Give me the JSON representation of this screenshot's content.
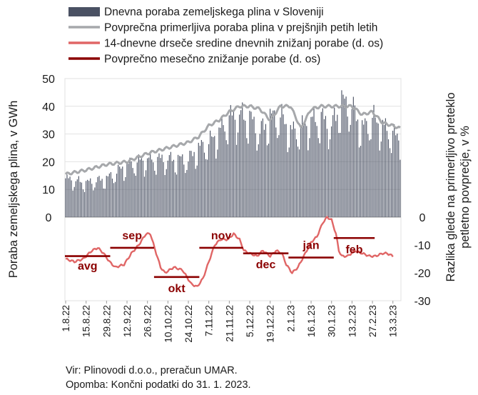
{
  "chart_data": {
    "type": "bar+line",
    "legend": [
      {
        "label": "Dnevna poraba zemeljskega plina v Sloveniji",
        "color": "#4a5163",
        "kind": "bar"
      },
      {
        "label": "Povprečna primerljiva poraba plina v prejšnjih petih letih",
        "color": "#a6a8ab",
        "kind": "line"
      },
      {
        "label": "14-dnevne drseče sredine dnevnih znižanj porabe (d. os)",
        "color": "#e06666",
        "kind": "line"
      },
      {
        "label": "Povprečno mesečno znižanje porabe (d. os)",
        "color": "#8b0000",
        "kind": "line"
      }
    ],
    "ylabel_left": "Poraba zemeljskega plina, v GWh",
    "ylabel_right": "Razlika glede na primerljivo preteklo petletno povprečje, v %",
    "y_left": {
      "ticks": [
        "50",
        "40",
        "30",
        "20",
        "10",
        "0"
      ],
      "range": [
        0,
        50
      ]
    },
    "y_right": {
      "ticks": [
        "0",
        "-10",
        "-20",
        "-30"
      ],
      "range": [
        -30,
        0
      ]
    },
    "x_ticks": [
      "1.8.22",
      "15.8.22",
      "29.8.22",
      "12.9.22",
      "26.9.22",
      "10.10.22",
      "24.10.22",
      "7.11.22",
      "21.11.22",
      "5.12.22",
      "19.12.22",
      "2.1.23",
      "16.1.23",
      "30.1.23",
      "13.2.23",
      "27.2.23",
      "13.3.23"
    ],
    "x_start": "2022-08-01",
    "n_days": 230,
    "daily_consumption_anchors": [
      [
        0,
        14
      ],
      [
        14,
        12.5
      ],
      [
        28,
        14
      ],
      [
        42,
        19
      ],
      [
        56,
        21
      ],
      [
        70,
        21
      ],
      [
        84,
        21
      ],
      [
        91,
        25
      ],
      [
        98,
        27
      ],
      [
        105,
        31
      ],
      [
        112,
        36
      ],
      [
        119,
        37
      ],
      [
        126,
        36
      ],
      [
        133,
        31
      ],
      [
        140,
        36
      ],
      [
        147,
        37
      ],
      [
        154,
        31
      ],
      [
        161,
        32
      ],
      [
        168,
        35
      ],
      [
        175,
        36
      ],
      [
        182,
        33
      ],
      [
        189,
        42
      ],
      [
        196,
        40
      ],
      [
        203,
        32
      ],
      [
        210,
        36
      ],
      [
        217,
        33
      ],
      [
        224,
        30
      ],
      [
        229,
        29
      ]
    ],
    "five_year_avg_anchors": [
      [
        0,
        15.5
      ],
      [
        14,
        17
      ],
      [
        28,
        19
      ],
      [
        42,
        20
      ],
      [
        56,
        23
      ],
      [
        70,
        25
      ],
      [
        84,
        27
      ],
      [
        91,
        29
      ],
      [
        98,
        33
      ],
      [
        105,
        35
      ],
      [
        112,
        38
      ],
      [
        119,
        40
      ],
      [
        126,
        40
      ],
      [
        133,
        39
      ],
      [
        140,
        35
      ],
      [
        147,
        40
      ],
      [
        154,
        40
      ],
      [
        161,
        32
      ],
      [
        168,
        39
      ],
      [
        175,
        40
      ],
      [
        182,
        40
      ],
      [
        189,
        40
      ],
      [
        196,
        40
      ],
      [
        203,
        37
      ],
      [
        210,
        38
      ],
      [
        217,
        34
      ],
      [
        224,
        33
      ],
      [
        229,
        32
      ]
    ],
    "moving_avg_anchors": [
      [
        0,
        -15
      ],
      [
        6,
        -16
      ],
      [
        12,
        -15
      ],
      [
        18,
        -12
      ],
      [
        22,
        -11
      ],
      [
        26,
        -13
      ],
      [
        30,
        -16
      ],
      [
        34,
        -18
      ],
      [
        40,
        -17
      ],
      [
        45,
        -13
      ],
      [
        50,
        -10
      ],
      [
        55,
        -6
      ],
      [
        58,
        -6
      ],
      [
        62,
        -13
      ],
      [
        65,
        -18
      ],
      [
        68,
        -20
      ],
      [
        74,
        -18
      ],
      [
        80,
        -19
      ],
      [
        86,
        -24
      ],
      [
        90,
        -25
      ],
      [
        94,
        -22
      ],
      [
        98,
        -16
      ],
      [
        102,
        -10
      ],
      [
        106,
        -8
      ],
      [
        111,
        -8
      ],
      [
        115,
        -6
      ],
      [
        119,
        -8
      ],
      [
        122,
        -12
      ],
      [
        126,
        -13
      ],
      [
        131,
        -14
      ],
      [
        135,
        -12
      ],
      [
        140,
        -14
      ],
      [
        144,
        -12
      ],
      [
        148,
        -13
      ],
      [
        151,
        -17
      ],
      [
        155,
        -20
      ],
      [
        159,
        -18
      ],
      [
        163,
        -14
      ],
      [
        168,
        -9
      ],
      [
        172,
        -7
      ],
      [
        176,
        -2
      ],
      [
        179,
        0
      ],
      [
        182,
        -1
      ],
      [
        185,
        -6
      ],
      [
        187,
        -12
      ],
      [
        189,
        -14
      ],
      [
        193,
        -14
      ],
      [
        198,
        -12
      ],
      [
        203,
        -13
      ],
      [
        208,
        -14
      ],
      [
        212,
        -14
      ],
      [
        217,
        -13
      ],
      [
        220,
        -13
      ],
      [
        224,
        -14
      ]
    ],
    "monthly_avg": [
      {
        "label": "avg",
        "from": 0,
        "to": 30,
        "value": -14.0
      },
      {
        "label": "sep",
        "from": 31,
        "to": 60,
        "value": -11.0
      },
      {
        "label": "okt",
        "from": 61,
        "to": 91,
        "value": -21.5
      },
      {
        "label": "nov",
        "from": 92,
        "to": 121,
        "value": -11.0
      },
      {
        "label": "dec",
        "from": 122,
        "to": 152,
        "value": -13.0
      },
      {
        "label": "jan",
        "from": 153,
        "to": 183,
        "value": -14.5
      },
      {
        "label": "feb",
        "from": 184,
        "to": 211,
        "value": -7.5
      }
    ]
  },
  "source": {
    "line1": "Vir: Plinovodi d.o.o., preračun UMAR.",
    "line2": "Opomba: Končni podatki do 31. 1. 2023."
  }
}
